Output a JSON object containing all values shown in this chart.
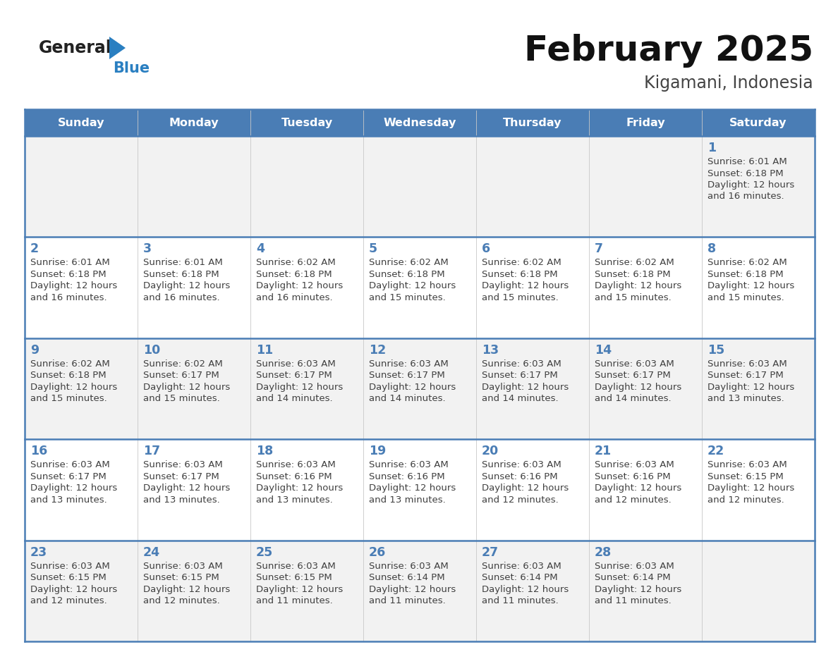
{
  "title": "February 2025",
  "subtitle": "Kigamani, Indonesia",
  "days_of_week": [
    "Sunday",
    "Monday",
    "Tuesday",
    "Wednesday",
    "Thursday",
    "Friday",
    "Saturday"
  ],
  "header_bg": "#4a7db5",
  "header_text": "#ffffff",
  "row_bg_odd": "#f2f2f2",
  "row_bg_even": "#ffffff",
  "day_number_color": "#4a7db5",
  "text_color": "#404040",
  "border_color": "#4a7db5",
  "logo_general_color": "#222222",
  "logo_blue_color": "#2a7fc1",
  "logo_triangle_color": "#2a7fc1",
  "title_color": "#111111",
  "subtitle_color": "#444444",
  "calendar_data": [
    [
      {
        "day": "",
        "sunrise": "",
        "sunset": "",
        "daylight_h": "",
        "daylight_m": ""
      },
      {
        "day": "",
        "sunrise": "",
        "sunset": "",
        "daylight_h": "",
        "daylight_m": ""
      },
      {
        "day": "",
        "sunrise": "",
        "sunset": "",
        "daylight_h": "",
        "daylight_m": ""
      },
      {
        "day": "",
        "sunrise": "",
        "sunset": "",
        "daylight_h": "",
        "daylight_m": ""
      },
      {
        "day": "",
        "sunrise": "",
        "sunset": "",
        "daylight_h": "",
        "daylight_m": ""
      },
      {
        "day": "",
        "sunrise": "",
        "sunset": "",
        "daylight_h": "",
        "daylight_m": ""
      },
      {
        "day": "1",
        "sunrise": "6:01 AM",
        "sunset": "6:18 PM",
        "daylight_h": "12 hours",
        "daylight_m": "and 16 minutes."
      }
    ],
    [
      {
        "day": "2",
        "sunrise": "6:01 AM",
        "sunset": "6:18 PM",
        "daylight_h": "12 hours",
        "daylight_m": "and 16 minutes."
      },
      {
        "day": "3",
        "sunrise": "6:01 AM",
        "sunset": "6:18 PM",
        "daylight_h": "12 hours",
        "daylight_m": "and 16 minutes."
      },
      {
        "day": "4",
        "sunrise": "6:02 AM",
        "sunset": "6:18 PM",
        "daylight_h": "12 hours",
        "daylight_m": "and 16 minutes."
      },
      {
        "day": "5",
        "sunrise": "6:02 AM",
        "sunset": "6:18 PM",
        "daylight_h": "12 hours",
        "daylight_m": "and 15 minutes."
      },
      {
        "day": "6",
        "sunrise": "6:02 AM",
        "sunset": "6:18 PM",
        "daylight_h": "12 hours",
        "daylight_m": "and 15 minutes."
      },
      {
        "day": "7",
        "sunrise": "6:02 AM",
        "sunset": "6:18 PM",
        "daylight_h": "12 hours",
        "daylight_m": "and 15 minutes."
      },
      {
        "day": "8",
        "sunrise": "6:02 AM",
        "sunset": "6:18 PM",
        "daylight_h": "12 hours",
        "daylight_m": "and 15 minutes."
      }
    ],
    [
      {
        "day": "9",
        "sunrise": "6:02 AM",
        "sunset": "6:18 PM",
        "daylight_h": "12 hours",
        "daylight_m": "and 15 minutes."
      },
      {
        "day": "10",
        "sunrise": "6:02 AM",
        "sunset": "6:17 PM",
        "daylight_h": "12 hours",
        "daylight_m": "and 15 minutes."
      },
      {
        "day": "11",
        "sunrise": "6:03 AM",
        "sunset": "6:17 PM",
        "daylight_h": "12 hours",
        "daylight_m": "and 14 minutes."
      },
      {
        "day": "12",
        "sunrise": "6:03 AM",
        "sunset": "6:17 PM",
        "daylight_h": "12 hours",
        "daylight_m": "and 14 minutes."
      },
      {
        "day": "13",
        "sunrise": "6:03 AM",
        "sunset": "6:17 PM",
        "daylight_h": "12 hours",
        "daylight_m": "and 14 minutes."
      },
      {
        "day": "14",
        "sunrise": "6:03 AM",
        "sunset": "6:17 PM",
        "daylight_h": "12 hours",
        "daylight_m": "and 14 minutes."
      },
      {
        "day": "15",
        "sunrise": "6:03 AM",
        "sunset": "6:17 PM",
        "daylight_h": "12 hours",
        "daylight_m": "and 13 minutes."
      }
    ],
    [
      {
        "day": "16",
        "sunrise": "6:03 AM",
        "sunset": "6:17 PM",
        "daylight_h": "12 hours",
        "daylight_m": "and 13 minutes."
      },
      {
        "day": "17",
        "sunrise": "6:03 AM",
        "sunset": "6:17 PM",
        "daylight_h": "12 hours",
        "daylight_m": "and 13 minutes."
      },
      {
        "day": "18",
        "sunrise": "6:03 AM",
        "sunset": "6:16 PM",
        "daylight_h": "12 hours",
        "daylight_m": "and 13 minutes."
      },
      {
        "day": "19",
        "sunrise": "6:03 AM",
        "sunset": "6:16 PM",
        "daylight_h": "12 hours",
        "daylight_m": "and 13 minutes."
      },
      {
        "day": "20",
        "sunrise": "6:03 AM",
        "sunset": "6:16 PM",
        "daylight_h": "12 hours",
        "daylight_m": "and 12 minutes."
      },
      {
        "day": "21",
        "sunrise": "6:03 AM",
        "sunset": "6:16 PM",
        "daylight_h": "12 hours",
        "daylight_m": "and 12 minutes."
      },
      {
        "day": "22",
        "sunrise": "6:03 AM",
        "sunset": "6:15 PM",
        "daylight_h": "12 hours",
        "daylight_m": "and 12 minutes."
      }
    ],
    [
      {
        "day": "23",
        "sunrise": "6:03 AM",
        "sunset": "6:15 PM",
        "daylight_h": "12 hours",
        "daylight_m": "and 12 minutes."
      },
      {
        "day": "24",
        "sunrise": "6:03 AM",
        "sunset": "6:15 PM",
        "daylight_h": "12 hours",
        "daylight_m": "and 12 minutes."
      },
      {
        "day": "25",
        "sunrise": "6:03 AM",
        "sunset": "6:15 PM",
        "daylight_h": "12 hours",
        "daylight_m": "and 11 minutes."
      },
      {
        "day": "26",
        "sunrise": "6:03 AM",
        "sunset": "6:14 PM",
        "daylight_h": "12 hours",
        "daylight_m": "and 11 minutes."
      },
      {
        "day": "27",
        "sunrise": "6:03 AM",
        "sunset": "6:14 PM",
        "daylight_h": "12 hours",
        "daylight_m": "and 11 minutes."
      },
      {
        "day": "28",
        "sunrise": "6:03 AM",
        "sunset": "6:14 PM",
        "daylight_h": "12 hours",
        "daylight_m": "and 11 minutes."
      },
      {
        "day": "",
        "sunrise": "",
        "sunset": "",
        "daylight_h": "",
        "daylight_m": ""
      }
    ]
  ]
}
